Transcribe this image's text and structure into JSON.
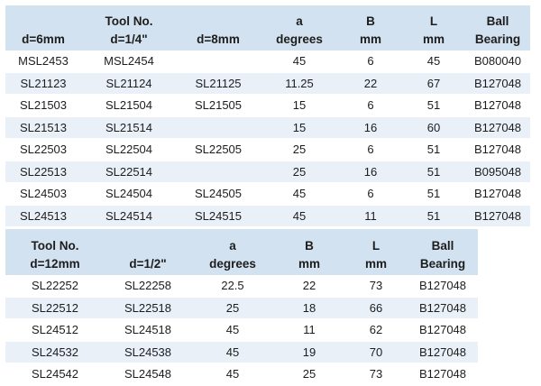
{
  "table1": {
    "header_top": [
      "",
      "Tool No.",
      "",
      "a",
      "B",
      "L",
      "Ball"
    ],
    "header_bottom": [
      "d=6mm",
      "d=1/4\"",
      "d=8mm",
      "degrees",
      "mm",
      "mm",
      "Bearing"
    ],
    "rows": [
      [
        "MSL2453",
        "MSL2454",
        "",
        "45",
        "6",
        "45",
        "B080040"
      ],
      [
        "SL21123",
        "SL21124",
        "SL21125",
        "11.25",
        "22",
        "67",
        "B127048"
      ],
      [
        "SL21503",
        "SL21504",
        "SL21505",
        "15",
        "6",
        "51",
        "B127048"
      ],
      [
        "SL21513",
        "SL21514",
        "",
        "15",
        "16",
        "60",
        "B127048"
      ],
      [
        "SL22503",
        "SL22504",
        "SL22505",
        "25",
        "6",
        "51",
        "B127048"
      ],
      [
        "SL22513",
        "SL22514",
        "",
        "25",
        "16",
        "51",
        "B095048"
      ],
      [
        "SL24503",
        "SL24504",
        "SL24505",
        "45",
        "6",
        "51",
        "B127048"
      ],
      [
        "SL24513",
        "SL24514",
        "SL24515",
        "45",
        "11",
        "51",
        "B127048"
      ]
    ]
  },
  "table2": {
    "header_top": [
      "Tool No.",
      "",
      "a",
      "B",
      "L",
      "Ball"
    ],
    "header_bottom": [
      "d=12mm",
      "d=1/2\"",
      "degrees",
      "mm",
      "mm",
      "Bearing"
    ],
    "rows": [
      [
        "SL22252",
        "SL22258",
        "22.5",
        "22",
        "73",
        "B127048"
      ],
      [
        "SL22512",
        "SL22518",
        "25",
        "18",
        "66",
        "B127048"
      ],
      [
        "SL24512",
        "SL24518",
        "45",
        "11",
        "62",
        "B127048"
      ],
      [
        "SL24532",
        "SL24538",
        "45",
        "19",
        "70",
        "B127048"
      ],
      [
        "SL24542",
        "SL24548",
        "45",
        "25",
        "73",
        "B127048"
      ]
    ]
  }
}
